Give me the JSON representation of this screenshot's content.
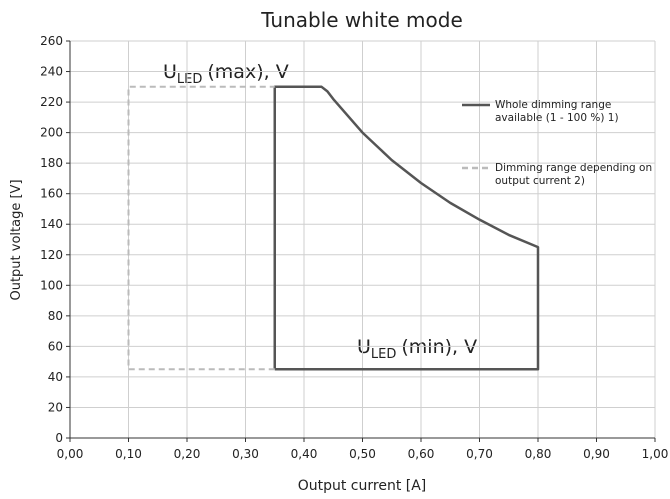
{
  "chart_data": {
    "type": "line",
    "title": "Tunable white mode",
    "xlabel": "Output current [A]",
    "ylabel": "Output voltage [V]",
    "xlim": [
      0,
      1
    ],
    "ylim": [
      0,
      260
    ],
    "xticks": [
      {
        "value": 0,
        "label": "0,00"
      },
      {
        "value": 0.1,
        "label": "0,10"
      },
      {
        "value": 0.2,
        "label": "0,20"
      },
      {
        "value": 0.3,
        "label": "0,30"
      },
      {
        "value": 0.4,
        "label": "0,40"
      },
      {
        "value": 0.5,
        "label": "0,50"
      },
      {
        "value": 0.6,
        "label": "0,60"
      },
      {
        "value": 0.7,
        "label": "0,70"
      },
      {
        "value": 0.8,
        "label": "0,80"
      },
      {
        "value": 0.9,
        "label": "0,90"
      },
      {
        "value": 1,
        "label": "1,00"
      }
    ],
    "yticks": [
      0,
      20,
      40,
      60,
      80,
      100,
      120,
      140,
      160,
      180,
      200,
      220,
      240,
      260
    ],
    "grid": true,
    "series": [
      {
        "name": "Whole dimming range available (1 - 100 %) 1)",
        "color": "#555555",
        "style": "solid",
        "x": [
          0.35,
          0.35,
          0.43,
          0.44,
          0.45,
          0.5,
          0.55,
          0.6,
          0.65,
          0.7,
          0.75,
          0.8,
          0.8,
          0.35
        ],
        "values": [
          45,
          230,
          230,
          227,
          222,
          200,
          182,
          167,
          154,
          143,
          133,
          125,
          45,
          45
        ]
      },
      {
        "name": "Dimming range depending on output current 2)",
        "color": "#bbbbbb",
        "style": "dashed",
        "x": [
          0.35,
          0.1,
          0.1,
          0.35
        ],
        "values": [
          45,
          45,
          230,
          230
        ]
      }
    ],
    "annotations": [
      {
        "main": "U",
        "sub": "LED",
        "rest": "(max), V"
      },
      {
        "main": "U",
        "sub": "LED",
        "rest": "(min), V"
      }
    ]
  }
}
